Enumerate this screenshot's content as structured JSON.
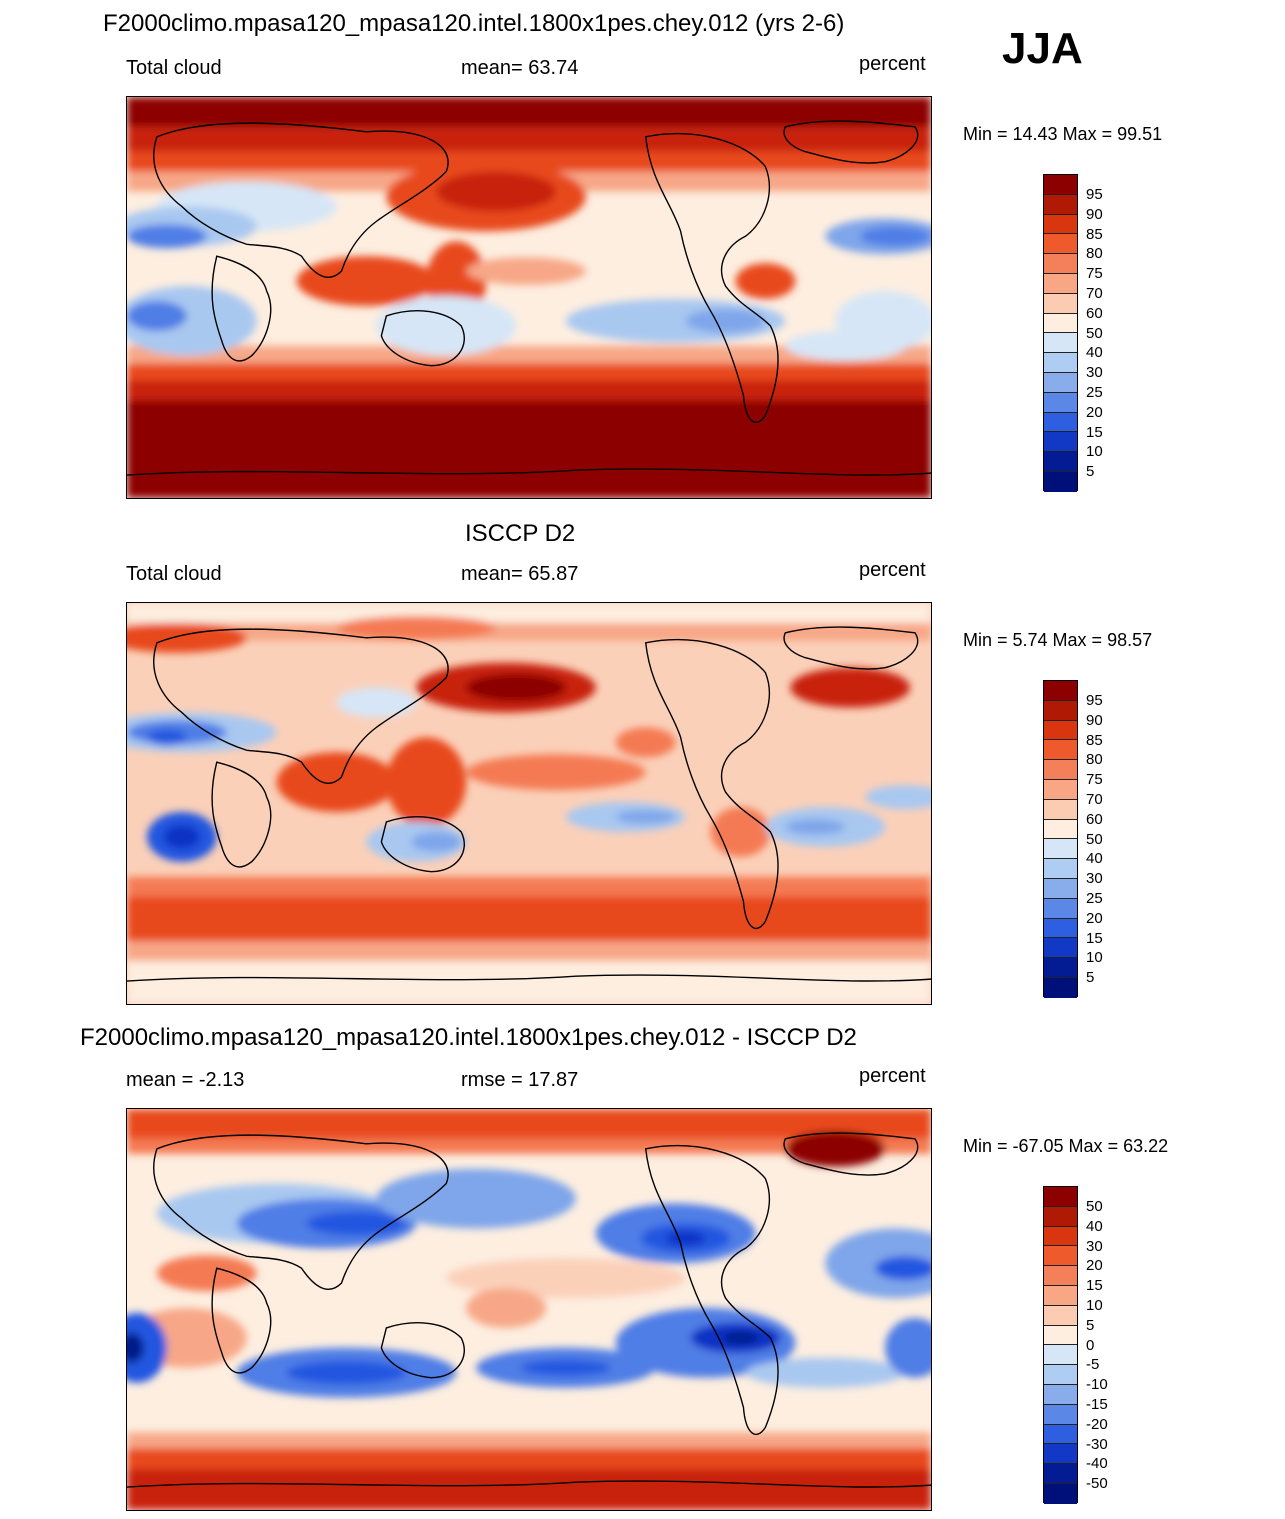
{
  "season": "JJA",
  "palette": {
    "dark_red": "#8c0000",
    "red": "#c8200a",
    "orange_red": "#e84a1e",
    "light_red": "#f47a52",
    "salmon": "#f7a787",
    "pale_peach": "#fbd0b9",
    "cream": "#fdeee0",
    "pale_blue": "#d6e6f7",
    "light_blue": "#a9c8f0",
    "mid_blue": "#7fa6ea",
    "blue": "#4f7ee6",
    "strong_blue": "#2256e0",
    "deep_blue": "#0a32c4",
    "navy": "#021a8a",
    "coast": "#000000"
  },
  "panels": [
    {
      "title": "F2000climo.mpasa120_mpasa120.intel.1800x1pes.chey.012 (yrs 2-6)",
      "left_label": "Total cloud",
      "center_label": "mean=  63.74",
      "right_label": "percent",
      "minmax": "Min =  14.43 Max =  99.51",
      "colorbar": {
        "ticks": [
          "95",
          "90",
          "85",
          "80",
          "75",
          "70",
          "60",
          "50",
          "40",
          "30",
          "25",
          "20",
          "15",
          "10",
          "5"
        ],
        "colors": [
          "#8c0000",
          "#b01a05",
          "#d9360f",
          "#ee5a2b",
          "#f4805a",
          "#f8a683",
          "#fbcbb2",
          "#fdeee0",
          "#d6e6f7",
          "#afcdf2",
          "#89adeb",
          "#5b87e6",
          "#2e5fe0",
          "#1238c6",
          "#031c94",
          "#00107a"
        ]
      },
      "map_style": "model"
    },
    {
      "title": "ISCCP D2",
      "left_label": "Total cloud",
      "center_label": "mean=  65.87",
      "right_label": "percent",
      "minmax": "Min =   5.74 Max =  98.57",
      "colorbar": {
        "ticks": [
          "95",
          "90",
          "85",
          "80",
          "75",
          "70",
          "60",
          "50",
          "40",
          "30",
          "25",
          "20",
          "15",
          "10",
          "5"
        ],
        "colors": [
          "#8c0000",
          "#b01a05",
          "#d9360f",
          "#ee5a2b",
          "#f4805a",
          "#f8a683",
          "#fbcbb2",
          "#fdeee0",
          "#d6e6f7",
          "#afcdf2",
          "#89adeb",
          "#5b87e6",
          "#2e5fe0",
          "#1238c6",
          "#031c94",
          "#00107a"
        ]
      },
      "map_style": "obs"
    },
    {
      "title": "F2000climo.mpasa120_mpasa120.intel.1800x1pes.chey.012 - ISCCP D2",
      "left_label": "mean =  -2.13",
      "center_label": "rmse =  17.87",
      "right_label": "percent",
      "minmax": "Min = -67.05 Max =  63.22",
      "colorbar": {
        "ticks": [
          "50",
          "40",
          "30",
          "20",
          "15",
          "10",
          "5",
          "0",
          "-5",
          "-10",
          "-15",
          "-20",
          "-30",
          "-40",
          "-50"
        ],
        "colors": [
          "#8c0000",
          "#b01a05",
          "#d9360f",
          "#ee5a2b",
          "#f4805a",
          "#f8a683",
          "#fbcbb2",
          "#fdeee0",
          "#d6e6f7",
          "#afcdf2",
          "#89adeb",
          "#5b87e6",
          "#2e5fe0",
          "#1238c6",
          "#031c94",
          "#00107a"
        ]
      },
      "map_style": "diff"
    }
  ]
}
